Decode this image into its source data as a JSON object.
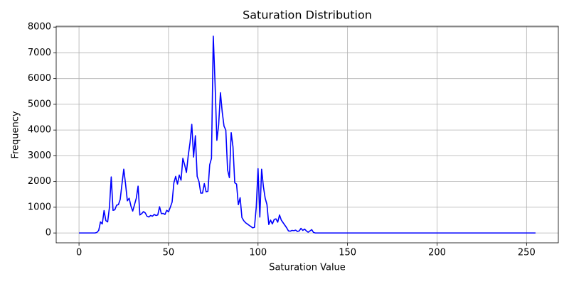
{
  "chart_data": {
    "type": "line",
    "title": "Saturation Distribution",
    "x_label": "Saturation Value",
    "y_label": "Frequency",
    "x": [
      0,
      5,
      9,
      10,
      11,
      12,
      13,
      14,
      15,
      16,
      17,
      18,
      19,
      20,
      21,
      22,
      23,
      24,
      25,
      26,
      27,
      28,
      29,
      30,
      31,
      32,
      33,
      34,
      35,
      36,
      37,
      38,
      39,
      40,
      41,
      42,
      43,
      44,
      45,
      46,
      47,
      48,
      49,
      50,
      51,
      52,
      53,
      54,
      55,
      56,
      57,
      58,
      59,
      60,
      61,
      62,
      63,
      64,
      65,
      66,
      67,
      68,
      69,
      70,
      71,
      72,
      73,
      74,
      75,
      76,
      77,
      78,
      79,
      80,
      81,
      82,
      83,
      84,
      85,
      86,
      87,
      88,
      89,
      90,
      91,
      92,
      93,
      94,
      95,
      96,
      97,
      98,
      99,
      100,
      101,
      102,
      103,
      104,
      105,
      106,
      107,
      108,
      109,
      110,
      111,
      112,
      113,
      114,
      115,
      116,
      117,
      118,
      119,
      120,
      121,
      122,
      123,
      124,
      125,
      126,
      127,
      128,
      129,
      130,
      131,
      132,
      135,
      255
    ],
    "series": [
      {
        "name": "Frequency",
        "color": "#0000ff",
        "values": [
          0,
          0,
          0,
          20,
          100,
          430,
          350,
          870,
          480,
          430,
          1000,
          2180,
          880,
          900,
          1080,
          1100,
          1300,
          1900,
          2480,
          1900,
          1250,
          1350,
          1050,
          850,
          1100,
          1350,
          1820,
          700,
          750,
          830,
          780,
          650,
          620,
          680,
          650,
          720,
          680,
          700,
          1020,
          750,
          760,
          720,
          880,
          820,
          1000,
          1200,
          1950,
          2200,
          1900,
          2250,
          2050,
          2900,
          2650,
          2350,
          3000,
          3500,
          4220,
          2950,
          3780,
          2200,
          2000,
          1550,
          1550,
          1920,
          1600,
          1620,
          2650,
          2900,
          7650,
          5800,
          3600,
          4200,
          5450,
          4700,
          4150,
          4000,
          2450,
          2150,
          3900,
          3350,
          1950,
          1900,
          1100,
          1370,
          600,
          480,
          400,
          350,
          300,
          250,
          200,
          220,
          1000,
          2500,
          620,
          2480,
          1800,
          1350,
          1100,
          330,
          500,
          350,
          520,
          550,
          420,
          700,
          500,
          400,
          300,
          200,
          80,
          70,
          100,
          90,
          110,
          60,
          80,
          180,
          100,
          150,
          80,
          30,
          80,
          130,
          20,
          0,
          0,
          0
        ]
      }
    ],
    "xlim": [
      -12.75,
      267.75
    ],
    "ylim": [
      -382.5,
      8032.5
    ],
    "xticks": [
      0,
      50,
      100,
      150,
      200,
      250
    ],
    "yticks": [
      0,
      1000,
      2000,
      3000,
      4000,
      5000,
      6000,
      7000,
      8000
    ],
    "grid": true
  }
}
